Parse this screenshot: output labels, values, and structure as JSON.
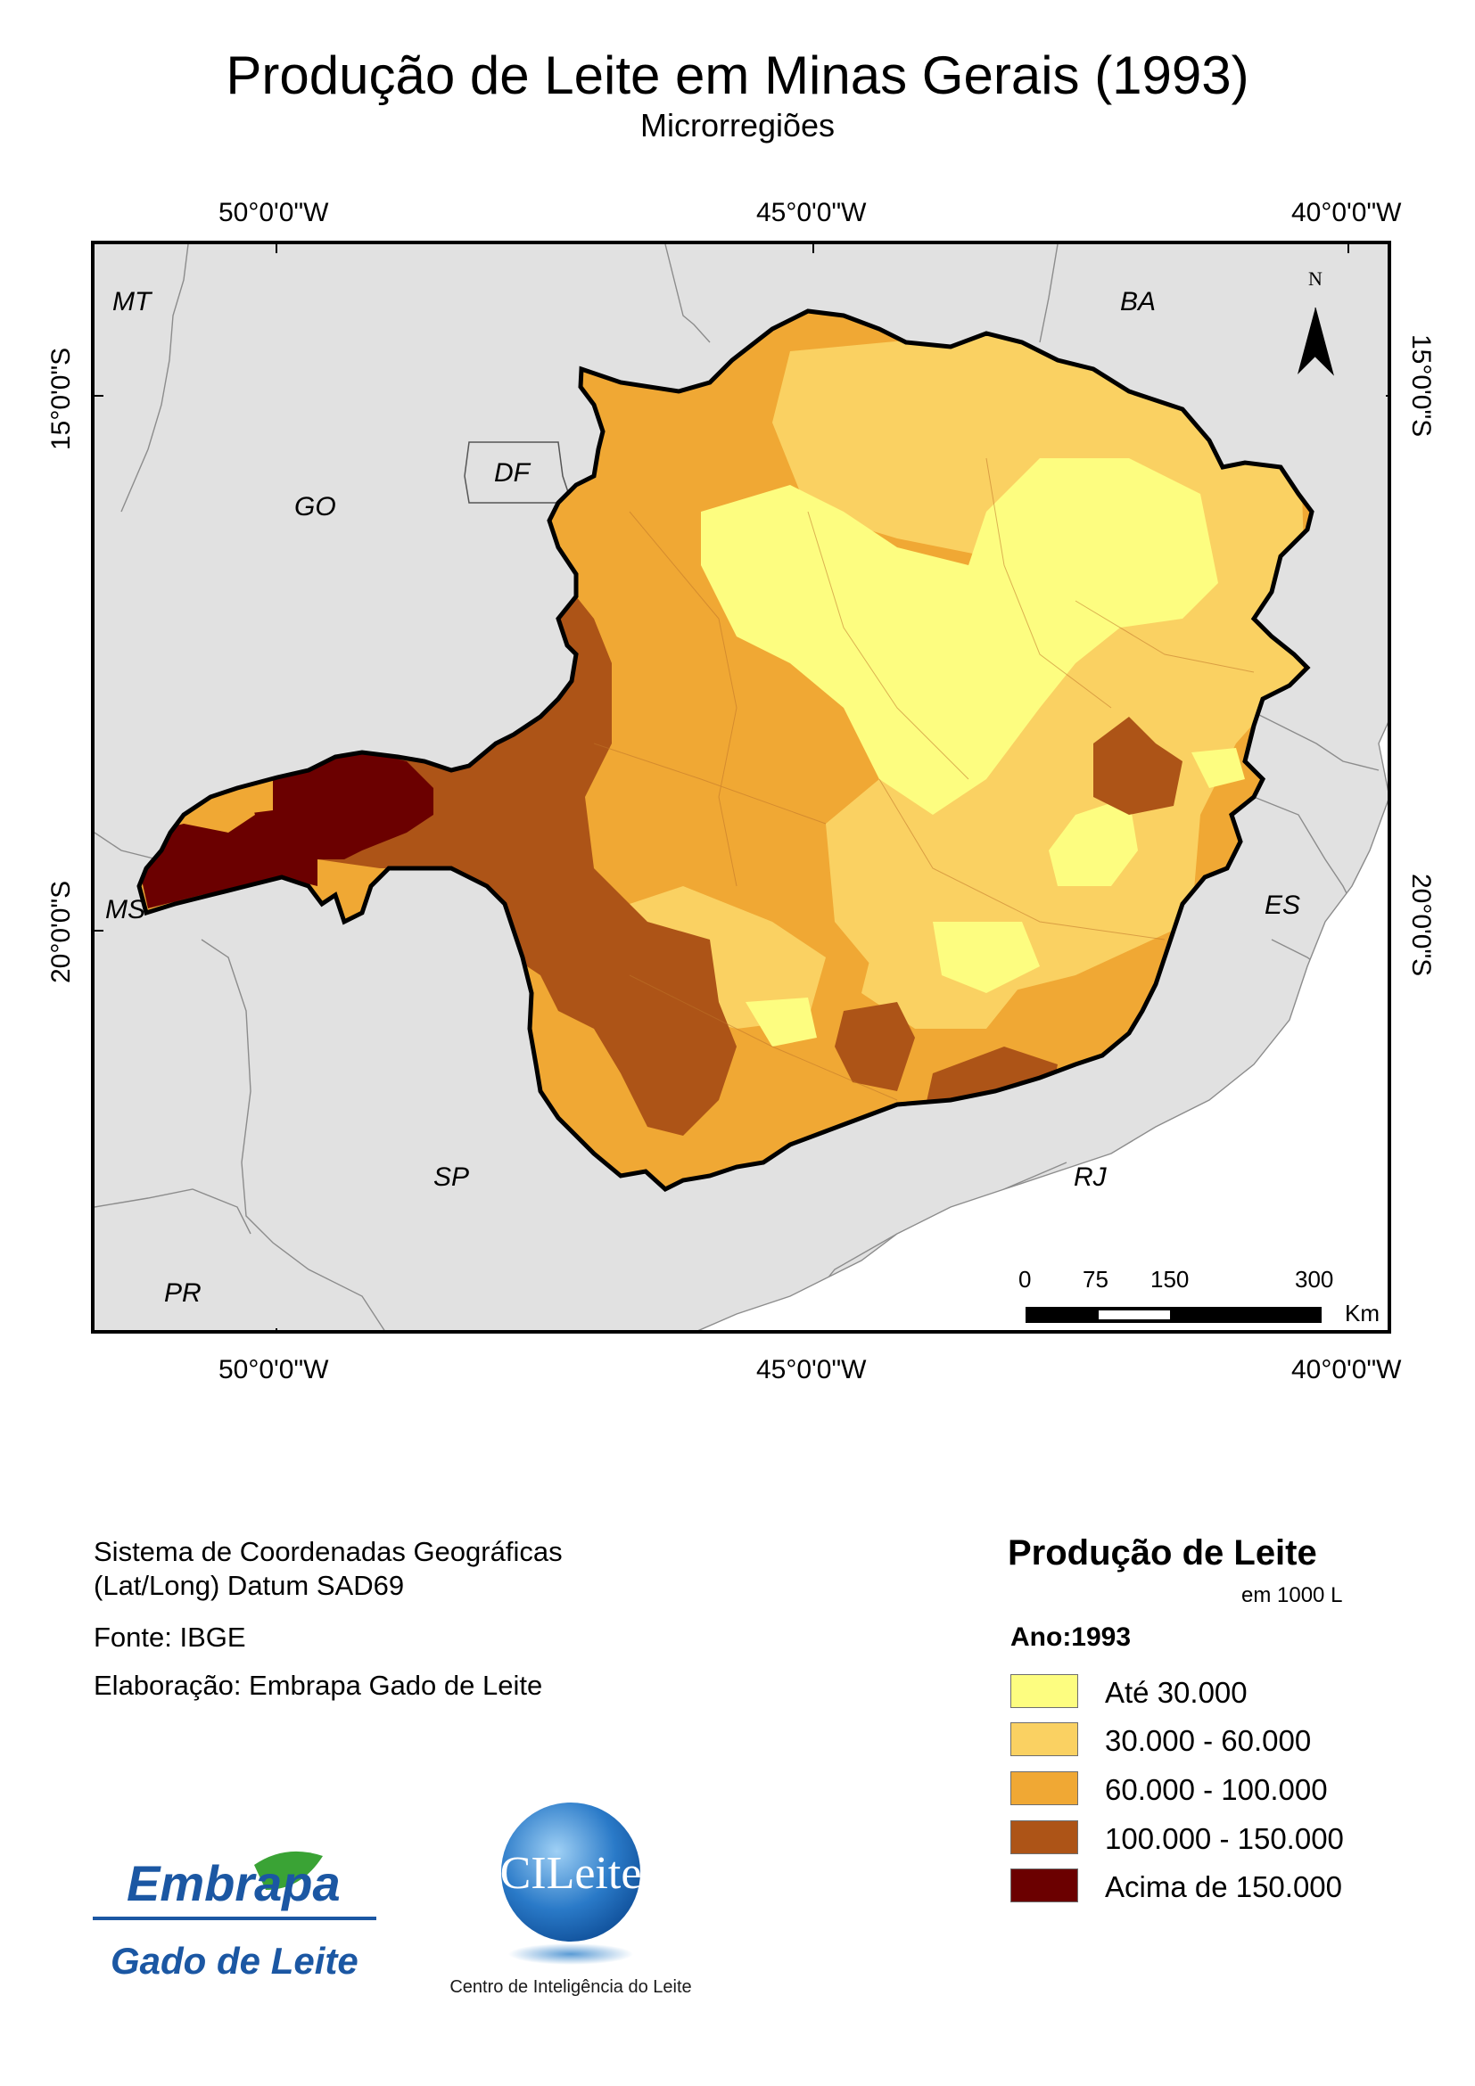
{
  "title": "Produção de Leite em Minas Gerais (1993)",
  "subtitle": "Microrregiões",
  "graticule": {
    "longitudes": [
      "50°0'0\"W",
      "45°0'0\"W",
      "40°0'0\"W"
    ],
    "latitudes": [
      "15°0'0\"S",
      "20°0'0\"S"
    ]
  },
  "state_labels": {
    "mt": "MT",
    "ba": "BA",
    "go": "GO",
    "df": "DF",
    "ms": "MS",
    "es": "ES",
    "sp": "SP",
    "rj": "RJ",
    "pr": "PR"
  },
  "north_arrow": {
    "letter": "N"
  },
  "scalebar": {
    "ticks": [
      "0",
      "75",
      "150",
      "300"
    ],
    "unit": "Km"
  },
  "info": {
    "crs_line1": "Sistema de Coordenadas Geográficas",
    "crs_line2": "(Lat/Long) Datum SAD69",
    "source": "Fonte: IBGE",
    "author": "Elaboração: Embrapa Gado de Leite"
  },
  "legend": {
    "title": "Produção de Leite",
    "unit": "em 1000 L",
    "year": "Ano:1993",
    "classes": [
      {
        "label": "Até 30.000",
        "color": "#fdfd80"
      },
      {
        "label": "30.000 - 60.000",
        "color": "#fad162"
      },
      {
        "label": "60.000 - 100.000",
        "color": "#f0a834"
      },
      {
        "label": "100.000 - 150.000",
        "color": "#ad5417"
      },
      {
        "label": "Acima de 150.000",
        "color": "#6b0000"
      }
    ]
  },
  "logos": {
    "embrapa_main": "Embrapa",
    "embrapa_sub": "Gado de Leite",
    "cileite_main": "CILeite",
    "cileite_sub": "Centro de Inteligência do Leite"
  }
}
